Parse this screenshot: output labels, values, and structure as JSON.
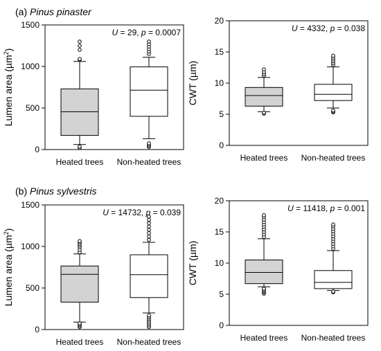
{
  "panels": [
    {
      "letter": "(a)",
      "species": "Pinus pinaster"
    },
    {
      "letter": "(b)",
      "species": "Pinus sylvestris"
    }
  ],
  "chart_data": [
    {
      "type": "box",
      "panel": "(a)",
      "ylabel_prefix": "Lumen area (µm",
      "ylabel_sup": "2",
      "ylabel_suffix": ")",
      "ylim": [
        0,
        1500
      ],
      "yticks": [
        "0",
        "500",
        "1000",
        "1500"
      ],
      "stat": {
        "letter": "U",
        "text1": " = 29, ",
        "p": "p",
        "text2": " = 0.0007"
      },
      "categories": [
        "Heated trees",
        "Non-heated trees"
      ],
      "boxes": [
        {
          "fill": "#d3d3d3",
          "q1": 170,
          "median": 455,
          "q3": 730,
          "whisker_low": 60,
          "whisker_high": 1060,
          "outliers": [
            20,
            35,
            1080,
            1090,
            1200,
            1250,
            1300
          ]
        },
        {
          "fill": "#ffffff",
          "q1": 400,
          "median": 715,
          "q3": 995,
          "whisker_low": 130,
          "whisker_high": 1110,
          "outliers": [
            30,
            45,
            60,
            75,
            1150,
            1180,
            1210,
            1240,
            1270,
            1300
          ]
        }
      ]
    },
    {
      "type": "box",
      "panel": "(a)",
      "ylabel_prefix": "CWT (µm)",
      "ylabel_sup": "",
      "ylabel_suffix": "",
      "ylim": [
        0,
        20
      ],
      "yticks": [
        "0",
        "5",
        "10",
        "15",
        "20"
      ],
      "stat": {
        "letter": "U",
        "text1": " = 4332, ",
        "p": "p",
        "text2": " = 0.038"
      },
      "categories": [
        "Heated trees",
        "Non-heated trees"
      ],
      "boxes": [
        {
          "fill": "#d3d3d3",
          "q1": 6.3,
          "median": 8.0,
          "q3": 9.3,
          "whisker_low": 5.4,
          "whisker_high": 10.9,
          "outliers": [
            5.1,
            5.25,
            11.2,
            11.5,
            11.8,
            12.2
          ]
        },
        {
          "fill": "#ffffff",
          "q1": 7.2,
          "median": 8.2,
          "q3": 9.8,
          "whisker_low": 6.0,
          "whisker_high": 12.6,
          "outliers": [
            5.3,
            5.45,
            5.6,
            12.9,
            13.2,
            13.5,
            13.8,
            14.1,
            14.4
          ]
        }
      ]
    },
    {
      "type": "box",
      "panel": "(b)",
      "ylabel_prefix": "Lumen area (µm",
      "ylabel_sup": "2",
      "ylabel_suffix": ")",
      "ylim": [
        0,
        1500
      ],
      "yticks": [
        "0",
        "500",
        "1000",
        "1500"
      ],
      "stat": {
        "letter": "U",
        "text1": " = 14732, ",
        "p": "p",
        "text2": " = 0.039"
      },
      "categories": [
        "Heated trees",
        "Non-heated trees"
      ],
      "boxes": [
        {
          "fill": "#d3d3d3",
          "q1": 330,
          "median": 665,
          "q3": 765,
          "whisker_low": 90,
          "whisker_high": 910,
          "outliers": [
            30,
            45,
            60,
            75,
            930,
            960,
            990,
            1010,
            1030,
            1050,
            1065
          ]
        },
        {
          "fill": "#ffffff",
          "q1": 385,
          "median": 660,
          "q3": 900,
          "whisker_low": 200,
          "whisker_high": 1050,
          "outliers": [
            30,
            50,
            70,
            90,
            110,
            130,
            150,
            170,
            1080,
            1120,
            1160,
            1200,
            1240,
            1280,
            1320,
            1360
          ]
        }
      ]
    },
    {
      "type": "box",
      "panel": "(b)",
      "ylabel_prefix": "CWT (µm)",
      "ylabel_sup": "",
      "ylabel_suffix": "",
      "ylim": [
        0,
        20
      ],
      "yticks": [
        "0",
        "5",
        "10",
        "15",
        "20"
      ],
      "stat": {
        "letter": "U",
        "text1": " = 11418, ",
        "p": "p",
        "text2": " = 0.001"
      },
      "categories": [
        "Heated trees",
        "Non-heated trees"
      ],
      "boxes": [
        {
          "fill": "#d3d3d3",
          "q1": 6.7,
          "median": 8.5,
          "q3": 10.5,
          "whisker_low": 6.2,
          "whisker_high": 13.9,
          "outliers": [
            5.1,
            5.3,
            5.5,
            5.7,
            5.9,
            14.2,
            14.6,
            15.0,
            15.4,
            15.8,
            16.2,
            16.6,
            17.0,
            17.4,
            17.7
          ]
        },
        {
          "fill": "#ffffff",
          "q1": 5.9,
          "median": 6.9,
          "q3": 8.8,
          "whisker_low": 5.6,
          "whisker_high": 12.0,
          "outliers": [
            5.3,
            5.45,
            12.3,
            12.7,
            13.1,
            13.5,
            13.9,
            14.3,
            14.7,
            15.1,
            15.5,
            15.9,
            16.2
          ]
        }
      ]
    }
  ]
}
